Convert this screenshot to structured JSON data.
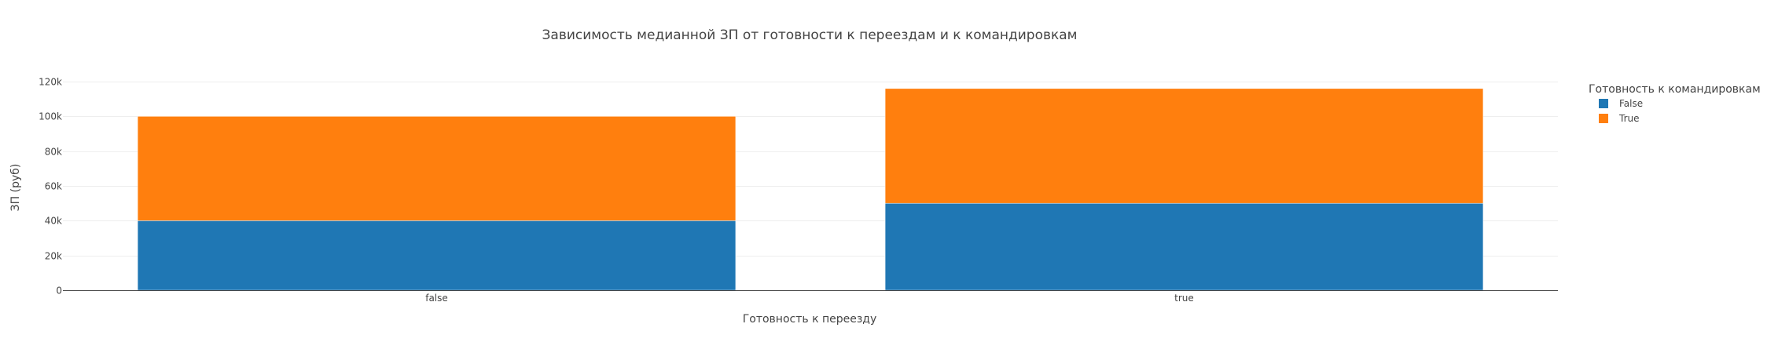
{
  "chart_data": {
    "type": "bar",
    "barmode": "stack",
    "title": "Зависимость медианной ЗП от готовности к переездам и к командировкам",
    "xlabel": "Готовность к переезду",
    "ylabel": "ЗП (руб)",
    "categories": [
      "false",
      "true"
    ],
    "series": [
      {
        "name": "False",
        "color": "#1f77b4",
        "values": [
          40000,
          50000
        ]
      },
      {
        "name": "True",
        "color": "#ff7f0e",
        "values": [
          60000,
          66000
        ]
      }
    ],
    "ylim": [
      0,
      120000
    ],
    "yticks": [
      0,
      20000,
      40000,
      60000,
      80000,
      100000,
      120000
    ],
    "ytick_labels": [
      "0",
      "20k",
      "40k",
      "60k",
      "80k",
      "100k",
      "120k"
    ],
    "grid": true,
    "legend": {
      "title": "Готовность к командировкам",
      "placement": "top-right"
    }
  }
}
